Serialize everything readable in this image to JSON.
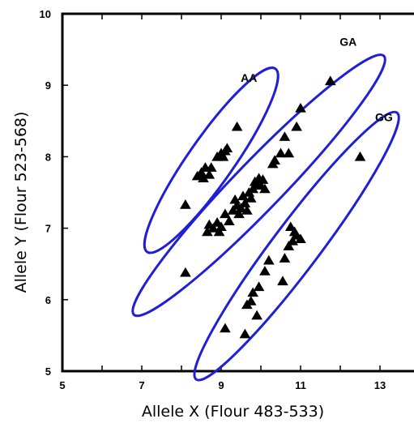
{
  "chart_data": {
    "type": "scatter",
    "xlabel": "Allele X (Flour 483-533)",
    "ylabel": "Allele Y (Flour 523-568)",
    "xlim": [
      5,
      14
    ],
    "ylim": [
      5,
      10
    ],
    "x_ticks": [
      5,
      7,
      9,
      11,
      13
    ],
    "y_ticks": [
      5,
      6,
      7,
      8,
      9,
      10
    ],
    "grid": false,
    "marker": "triangle",
    "colors": {
      "marker": "#000000",
      "cluster_outline": "#1f1fd6",
      "axis": "#000000"
    },
    "clusters": [
      {
        "name": "AA",
        "points": [
          [
            8.1,
            7.33
          ],
          [
            8.4,
            7.73
          ],
          [
            8.5,
            7.78
          ],
          [
            8.55,
            7.7
          ],
          [
            8.6,
            7.85
          ],
          [
            8.7,
            7.75
          ],
          [
            8.75,
            7.85
          ],
          [
            8.9,
            8.0
          ],
          [
            9.0,
            8.05
          ],
          [
            9.05,
            8.0
          ],
          [
            9.1,
            8.08
          ],
          [
            9.15,
            8.12
          ],
          [
            9.4,
            8.42
          ]
        ]
      },
      {
        "name": "GA",
        "points": [
          [
            8.1,
            6.38
          ],
          [
            8.65,
            6.95
          ],
          [
            8.7,
            7.05
          ],
          [
            8.8,
            7.0
          ],
          [
            8.9,
            7.08
          ],
          [
            8.95,
            6.95
          ],
          [
            9.0,
            7.02
          ],
          [
            9.1,
            7.2
          ],
          [
            9.2,
            7.1
          ],
          [
            9.3,
            7.25
          ],
          [
            9.35,
            7.4
          ],
          [
            9.4,
            7.32
          ],
          [
            9.45,
            7.2
          ],
          [
            9.5,
            7.28
          ],
          [
            9.55,
            7.45
          ],
          [
            9.6,
            7.35
          ],
          [
            9.65,
            7.25
          ],
          [
            9.7,
            7.5
          ],
          [
            9.75,
            7.42
          ],
          [
            9.8,
            7.55
          ],
          [
            9.85,
            7.65
          ],
          [
            9.9,
            7.6
          ],
          [
            9.95,
            7.7
          ],
          [
            10.0,
            7.6
          ],
          [
            10.05,
            7.68
          ],
          [
            10.1,
            7.55
          ],
          [
            10.3,
            7.9
          ],
          [
            10.35,
            7.95
          ],
          [
            10.5,
            8.05
          ],
          [
            10.6,
            8.28
          ],
          [
            10.7,
            8.05
          ],
          [
            10.9,
            8.42
          ],
          [
            11.0,
            8.68
          ],
          [
            11.75,
            9.06
          ]
        ]
      },
      {
        "name": "GG",
        "points": [
          [
            9.1,
            5.6
          ],
          [
            9.6,
            5.52
          ],
          [
            9.65,
            5.93
          ],
          [
            9.75,
            5.98
          ],
          [
            9.8,
            6.1
          ],
          [
            9.9,
            5.78
          ],
          [
            9.95,
            6.18
          ],
          [
            10.1,
            6.4
          ],
          [
            10.2,
            6.55
          ],
          [
            10.55,
            6.26
          ],
          [
            10.6,
            6.58
          ],
          [
            10.7,
            6.75
          ],
          [
            10.75,
            7.02
          ],
          [
            10.8,
            6.82
          ],
          [
            10.85,
            6.95
          ],
          [
            10.9,
            6.9
          ],
          [
            11.0,
            6.85
          ],
          [
            12.5,
            8.0
          ]
        ]
      }
    ]
  }
}
